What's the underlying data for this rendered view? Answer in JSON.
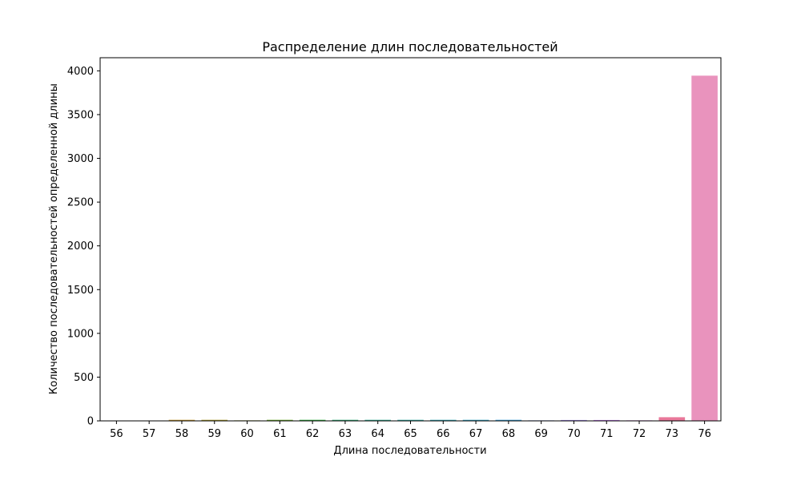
{
  "chart_data": {
    "type": "bar",
    "title": "Распределение длин последовательностей",
    "xlabel": "Длина последовательности",
    "ylabel": "Количество последовательностей определенной длины",
    "categories": [
      "56",
      "57",
      "58",
      "59",
      "60",
      "61",
      "62",
      "63",
      "64",
      "65",
      "66",
      "67",
      "68",
      "69",
      "70",
      "71",
      "72",
      "73",
      "76"
    ],
    "values": [
      4,
      4,
      12,
      12,
      6,
      12,
      12,
      12,
      12,
      12,
      12,
      12,
      12,
      6,
      10,
      10,
      6,
      42,
      3945
    ],
    "colors": [
      "#e8756d",
      "#da8236",
      "#c79a34",
      "#ad9f31",
      "#95a531",
      "#70ad33",
      "#33b042",
      "#36b17a",
      "#37b094",
      "#38aea6",
      "#38aab7",
      "#39a8c7",
      "#3ea3da",
      "#8497ea",
      "#a88ff0",
      "#c67cf0",
      "#e06fec",
      "#e9789a",
      "#e993bd"
    ],
    "ylim": [
      0,
      4150
    ],
    "yticks": [
      0,
      500,
      1000,
      1500,
      2000,
      2500,
      3000,
      3500,
      4000
    ],
    "grid": false,
    "legend": false
  }
}
